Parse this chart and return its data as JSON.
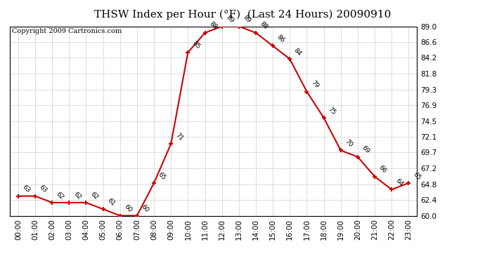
{
  "title": "THSW Index per Hour (°F)  (Last 24 Hours) 20090910",
  "copyright": "Copyright 2009 Cartronics.com",
  "hours": [
    "00:00",
    "01:00",
    "02:00",
    "03:00",
    "04:00",
    "05:00",
    "06:00",
    "07:00",
    "08:00",
    "09:00",
    "10:00",
    "11:00",
    "12:00",
    "13:00",
    "14:00",
    "15:00",
    "16:00",
    "17:00",
    "18:00",
    "19:00",
    "20:00",
    "21:00",
    "22:00",
    "23:00"
  ],
  "values": [
    63,
    63,
    62,
    62,
    62,
    61,
    60,
    60,
    65,
    71,
    85,
    88,
    89,
    89,
    88,
    86,
    84,
    79,
    75,
    70,
    69,
    66,
    64,
    65
  ],
  "ylim_min": 60.0,
  "ylim_max": 89.0,
  "yticks": [
    60.0,
    62.4,
    64.8,
    67.2,
    69.7,
    72.1,
    74.5,
    76.9,
    79.3,
    81.8,
    84.2,
    86.6,
    89.0
  ],
  "line_color": "#cc0000",
  "marker_color": "#cc0000",
  "bg_color": "#ffffff",
  "plot_bg_color": "#ffffff",
  "grid_color": "#bbbbbb",
  "title_fontsize": 11,
  "copyright_fontsize": 7,
  "label_fontsize": 6.5,
  "tick_fontsize": 7.5
}
